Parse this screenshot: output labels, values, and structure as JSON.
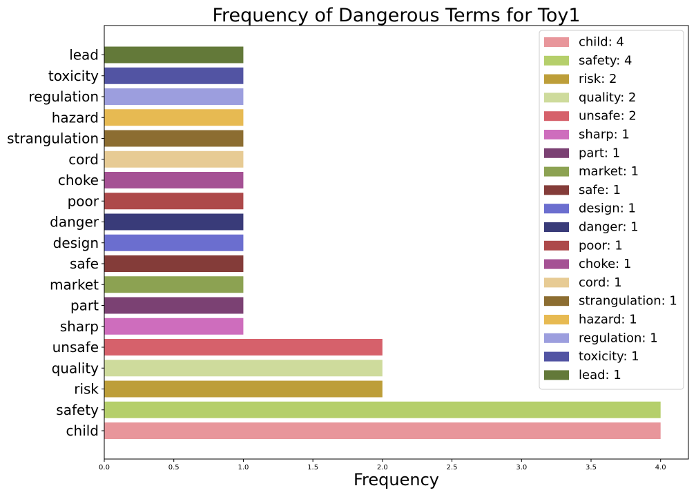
{
  "chart_data": {
    "type": "bar",
    "orientation": "horizontal",
    "title": "Frequency of Dangerous Terms for Toy1",
    "xlabel": "Frequency",
    "ylabel": "",
    "xlim": [
      0,
      4.2
    ],
    "xticks": [
      "0.0",
      "0.5",
      "1.0",
      "1.5",
      "2.0",
      "2.5",
      "3.0",
      "3.5",
      "4.0"
    ],
    "grid": false,
    "legend_position": "top-right",
    "bars": [
      {
        "term": "child",
        "value": 4,
        "color": "#e8969b",
        "legend_label": "child: 4"
      },
      {
        "term": "safety",
        "value": 4,
        "color": "#b5cf6b",
        "legend_label": "safety: 4"
      },
      {
        "term": "risk",
        "value": 2,
        "color": "#bd9e39",
        "legend_label": "risk: 2"
      },
      {
        "term": "quality",
        "value": 2,
        "color": "#cedb9c",
        "legend_label": "quality: 2"
      },
      {
        "term": "unsafe",
        "value": 2,
        "color": "#d6616b",
        "legend_label": "unsafe: 2"
      },
      {
        "term": "sharp",
        "value": 1,
        "color": "#ce6dbd",
        "legend_label": "sharp: 1"
      },
      {
        "term": "part",
        "value": 1,
        "color": "#7b4173",
        "legend_label": "part: 1"
      },
      {
        "term": "market",
        "value": 1,
        "color": "#8ca252",
        "legend_label": "market: 1"
      },
      {
        "term": "safe",
        "value": 1,
        "color": "#843c39",
        "legend_label": "safe: 1"
      },
      {
        "term": "design",
        "value": 1,
        "color": "#6b6ecf",
        "legend_label": "design: 1"
      },
      {
        "term": "danger",
        "value": 1,
        "color": "#393b79",
        "legend_label": "danger: 1"
      },
      {
        "term": "poor",
        "value": 1,
        "color": "#ad494a",
        "legend_label": "poor: 1"
      },
      {
        "term": "choke",
        "value": 1,
        "color": "#a55194",
        "legend_label": "choke: 1"
      },
      {
        "term": "cord",
        "value": 1,
        "color": "#e7cb94",
        "legend_label": "cord: 1"
      },
      {
        "term": "strangulation",
        "value": 1,
        "color": "#8c6d31",
        "legend_label": "strangulation: 1"
      },
      {
        "term": "hazard",
        "value": 1,
        "color": "#e7ba52",
        "legend_label": "hazard: 1"
      },
      {
        "term": "regulation",
        "value": 1,
        "color": "#9c9ede",
        "legend_label": "regulation: 1"
      },
      {
        "term": "toxicity",
        "value": 1,
        "color": "#5254a3",
        "legend_label": "toxicity: 1"
      },
      {
        "term": "lead",
        "value": 1,
        "color": "#637939",
        "legend_label": "lead: 1"
      }
    ]
  }
}
